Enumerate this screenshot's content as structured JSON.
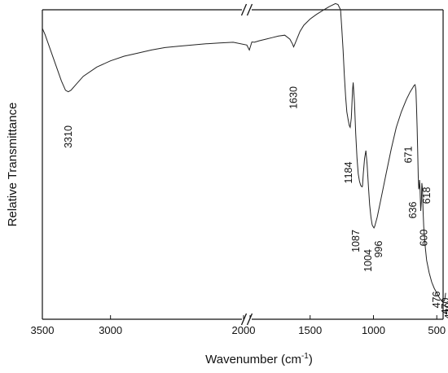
{
  "chart_data": {
    "type": "line",
    "xlabel": "Wavenumber (cm",
    "xlabel_sup": "-1",
    "xlabel_close": ")",
    "ylabel": "Relative Transmittance",
    "x_axis": {
      "broken": true,
      "break_at": 2000,
      "segments": [
        {
          "range": [
            3500,
            2000
          ],
          "ticks": [
            3500,
            3000,
            2000
          ]
        },
        {
          "range": [
            2000,
            450
          ],
          "ticks": [
            2000,
            1500,
            1000,
            500
          ]
        }
      ]
    },
    "yticks_shown": false,
    "grid": false,
    "series": [
      {
        "x": [
          3500,
          3480,
          3440,
          3400,
          3360,
          3330,
          3310,
          3290,
          3250,
          3200,
          3100,
          3000,
          2900,
          2800,
          2700,
          2600,
          2500,
          2400,
          2300,
          2200,
          2100,
          2000,
          1980,
          1960,
          1940,
          1900,
          1850,
          1800,
          1750,
          1700,
          1660,
          1640,
          1630,
          1620,
          1600,
          1580,
          1550,
          1500,
          1450,
          1400,
          1350,
          1300,
          1280,
          1260,
          1250,
          1240,
          1230,
          1220,
          1210,
          1200,
          1190,
          1184,
          1175,
          1165,
          1160,
          1150,
          1140,
          1130,
          1120,
          1110,
          1100,
          1090,
          1087,
          1080,
          1070,
          1060,
          1050,
          1040,
          1030,
          1020,
          1010,
          1004,
          996,
          990,
          970,
          940,
          900,
          860,
          820,
          780,
          740,
          710,
          690,
          680,
          671,
          665,
          660,
          655,
          650,
          646,
          642,
          638,
          636,
          632,
          627,
          622,
          618,
          613,
          608,
          603,
          600,
          596,
          590,
          580,
          560,
          540,
          520,
          500,
          488,
          480,
          476,
          470,
          460,
          450,
          440,
          435,
          430
        ],
        "y": [
          0.94,
          0.92,
          0.87,
          0.82,
          0.77,
          0.74,
          0.735,
          0.74,
          0.76,
          0.785,
          0.815,
          0.835,
          0.85,
          0.86,
          0.87,
          0.878,
          0.882,
          0.886,
          0.89,
          0.893,
          0.895,
          0.886,
          0.87,
          0.896,
          0.895,
          0.9,
          0.905,
          0.91,
          0.915,
          0.918,
          0.905,
          0.89,
          0.88,
          0.89,
          0.91,
          0.93,
          0.95,
          0.97,
          0.985,
          0.998,
          1.01,
          1.02,
          1.017,
          1.0,
          0.94,
          0.87,
          0.79,
          0.72,
          0.67,
          0.645,
          0.625,
          0.62,
          0.65,
          0.74,
          0.765,
          0.7,
          0.6,
          0.52,
          0.47,
          0.445,
          0.432,
          0.428,
          0.43,
          0.47,
          0.52,
          0.545,
          0.5,
          0.43,
          0.37,
          0.33,
          0.305,
          0.3,
          0.295,
          0.3,
          0.33,
          0.39,
          0.47,
          0.55,
          0.62,
          0.67,
          0.71,
          0.735,
          0.748,
          0.755,
          0.758,
          0.74,
          0.69,
          0.62,
          0.53,
          0.46,
          0.42,
          0.43,
          0.45,
          0.42,
          0.35,
          0.38,
          0.44,
          0.42,
          0.35,
          0.3,
          0.28,
          0.26,
          0.23,
          0.19,
          0.15,
          0.12,
          0.1,
          0.085,
          0.075,
          0.07,
          0.067,
          0.062,
          0.06,
          0.058,
          0.06,
          0.068,
          0.085
        ]
      }
    ],
    "annotations": [
      {
        "text": "3310",
        "x": 3310
      },
      {
        "text": "1630",
        "x": 1630
      },
      {
        "text": "1184",
        "x": 1184
      },
      {
        "text": "1087",
        "x": 1087
      },
      {
        "text": "1004",
        "x": 1004
      },
      {
        "text": "996",
        "x": 996
      },
      {
        "text": "671",
        "x": 671
      },
      {
        "text": "636",
        "x": 636
      },
      {
        "text": "618",
        "x": 618
      },
      {
        "text": "600",
        "x": 600
      },
      {
        "text": "476",
        "x": 476
      },
      {
        "text": "470",
        "x": 470
      },
      {
        "text": "430",
        "x": 430
      }
    ]
  }
}
